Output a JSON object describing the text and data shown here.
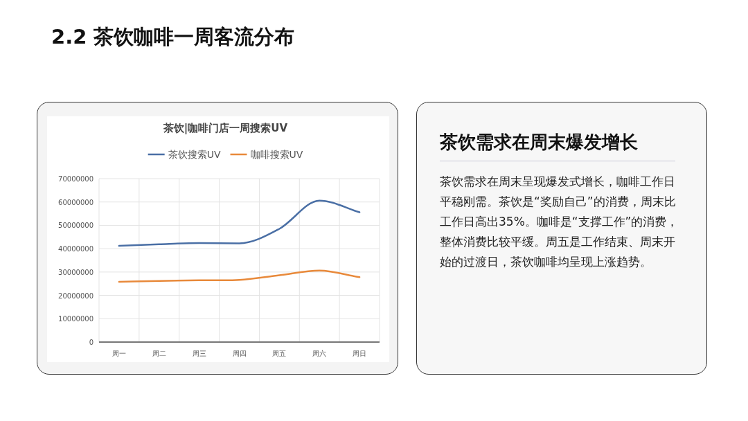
{
  "chart_data": {
    "type": "line",
    "title": "茶饮|咖啡门店一周搜索UV",
    "categories": [
      "周一",
      "周二",
      "周三",
      "周四",
      "周五",
      "周六",
      "周日"
    ],
    "series": [
      {
        "name": "茶饮搜索UV",
        "color": "#4a6fa5",
        "values": [
          41200000,
          41900000,
          42400000,
          42300000,
          48500000,
          60600000,
          55600000
        ]
      },
      {
        "name": "咖啡搜索UV",
        "color": "#e8893a",
        "values": [
          25800000,
          26200000,
          26500000,
          26600000,
          28600000,
          30600000,
          27800000
        ]
      }
    ],
    "ylim": [
      0,
      70000000
    ],
    "yticks": [
      0,
      10000000,
      20000000,
      30000000,
      40000000,
      50000000,
      60000000,
      70000000
    ],
    "grid": true,
    "legend": "top",
    "marker": "none",
    "line_style": "solid",
    "annotations": [
      "2.2 茶饮咖啡一周客流分布",
      "茶饮需求在周末爆发增长",
      "茶饮需求在周末呈现爆发式增长，咖啡工作日平稳刚需。茶饮是“奖励自己”的消费，周末比工作日高出35%。咖啡是“支撑工作”的消费，整体消费比较平缓。周五是工作结束、周末开始的过渡日，茶饮咖啡均呈现上涨趋势。"
    ]
  }
}
